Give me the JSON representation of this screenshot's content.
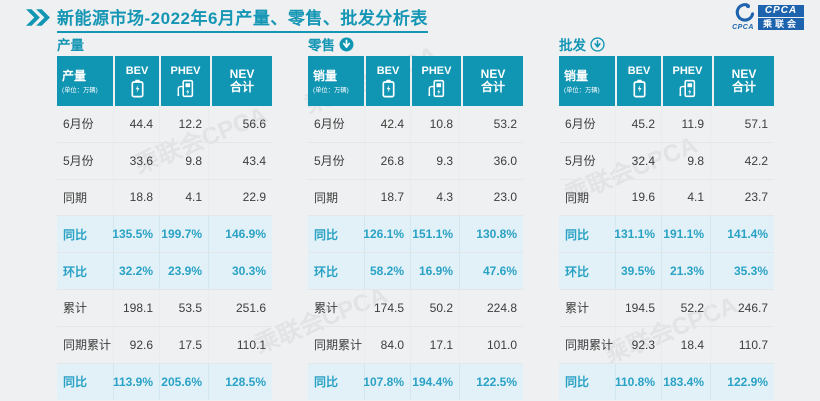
{
  "page": {
    "background": "#eef0f1"
  },
  "header": {
    "title": "新能源市场-2022年6月产量、零售、批发分析表",
    "chevron_icon": "double-chevron-right-icon",
    "logo": {
      "icon": "cpca-swirl-icon",
      "small_text": "CPCA",
      "block_top": "CPCA",
      "block_bottom": "乘联会"
    }
  },
  "colors": {
    "teal": "#1095b3",
    "title_teal": "#1496b4",
    "highlight_bg": "#e2f1f8",
    "highlight_text": "#2aa2c5",
    "logo_blue": "#1d63ad"
  },
  "watermark": {
    "text": "乘联会CPCA"
  },
  "chart_data": [
    {
      "type": "table",
      "section_label": "产量",
      "section_icon": null,
      "header": {
        "title": "产量",
        "unit": "(单位：万辆)"
      },
      "columns": [
        {
          "label": "BEV",
          "icon": "battery-icon"
        },
        {
          "label": "PHEV",
          "icon": "charger-icon"
        },
        {
          "label": "NEV\n合计",
          "icon": null
        }
      ],
      "rows": [
        {
          "label": "6月份",
          "values": [
            "44.4",
            "12.2",
            "56.6"
          ],
          "highlight": false
        },
        {
          "label": "5月份",
          "values": [
            "33.6",
            "9.8",
            "43.4"
          ],
          "highlight": false
        },
        {
          "label": "同期",
          "values": [
            "18.8",
            "4.1",
            "22.9"
          ],
          "highlight": false
        },
        {
          "label": "同比",
          "values": [
            "135.5%",
            "199.7%",
            "146.9%"
          ],
          "highlight": true
        },
        {
          "label": "环比",
          "values": [
            "32.2%",
            "23.9%",
            "30.3%"
          ],
          "highlight": true
        },
        {
          "label": "累计",
          "values": [
            "198.1",
            "53.5",
            "251.6"
          ],
          "highlight": false
        },
        {
          "label": "同期累计",
          "values": [
            "92.6",
            "17.5",
            "110.1"
          ],
          "highlight": false
        },
        {
          "label": "同比",
          "values": [
            "113.9%",
            "205.6%",
            "128.5%"
          ],
          "highlight": true
        }
      ]
    },
    {
      "type": "table",
      "section_label": "零售",
      "section_icon": "circle-arrow-down-filled-icon",
      "header": {
        "title": "销量",
        "unit": "(单位：万辆)"
      },
      "columns": [
        {
          "label": "BEV",
          "icon": "battery-icon"
        },
        {
          "label": "PHEV",
          "icon": "charger-icon"
        },
        {
          "label": "NEV\n合计",
          "icon": null
        }
      ],
      "rows": [
        {
          "label": "6月份",
          "values": [
            "42.4",
            "10.8",
            "53.2"
          ],
          "highlight": false
        },
        {
          "label": "5月份",
          "values": [
            "26.8",
            "9.3",
            "36.0"
          ],
          "highlight": false
        },
        {
          "label": "同期",
          "values": [
            "18.7",
            "4.3",
            "23.0"
          ],
          "highlight": false
        },
        {
          "label": "同比",
          "values": [
            "126.1%",
            "151.1%",
            "130.8%"
          ],
          "highlight": true
        },
        {
          "label": "环比",
          "values": [
            "58.2%",
            "16.9%",
            "47.6%"
          ],
          "highlight": true
        },
        {
          "label": "累计",
          "values": [
            "174.5",
            "50.2",
            "224.8"
          ],
          "highlight": false
        },
        {
          "label": "同期累计",
          "values": [
            "84.0",
            "17.1",
            "101.0"
          ],
          "highlight": false
        },
        {
          "label": "同比",
          "values": [
            "107.8%",
            "194.4%",
            "122.5%"
          ],
          "highlight": true
        }
      ]
    },
    {
      "type": "table",
      "section_label": "批发",
      "section_icon": "circle-arrow-down-outline-icon",
      "header": {
        "title": "销量",
        "unit": "(单位：万辆)"
      },
      "columns": [
        {
          "label": "BEV",
          "icon": "battery-icon"
        },
        {
          "label": "PHEV",
          "icon": "charger-icon"
        },
        {
          "label": "NEV\n合计",
          "icon": null
        }
      ],
      "rows": [
        {
          "label": "6月份",
          "values": [
            "45.2",
            "11.9",
            "57.1"
          ],
          "highlight": false
        },
        {
          "label": "5月份",
          "values": [
            "32.4",
            "9.8",
            "42.2"
          ],
          "highlight": false
        },
        {
          "label": "同期",
          "values": [
            "19.6",
            "4.1",
            "23.7"
          ],
          "highlight": false
        },
        {
          "label": "同比",
          "values": [
            "131.1%",
            "191.1%",
            "141.4%"
          ],
          "highlight": true
        },
        {
          "label": "环比",
          "values": [
            "39.5%",
            "21.3%",
            "35.3%"
          ],
          "highlight": true
        },
        {
          "label": "累计",
          "values": [
            "194.5",
            "52.2",
            "246.7"
          ],
          "highlight": false
        },
        {
          "label": "同期累计",
          "values": [
            "92.3",
            "18.4",
            "110.7"
          ],
          "highlight": false
        },
        {
          "label": "同比",
          "values": [
            "110.8%",
            "183.4%",
            "122.9%"
          ],
          "highlight": true
        }
      ]
    }
  ]
}
